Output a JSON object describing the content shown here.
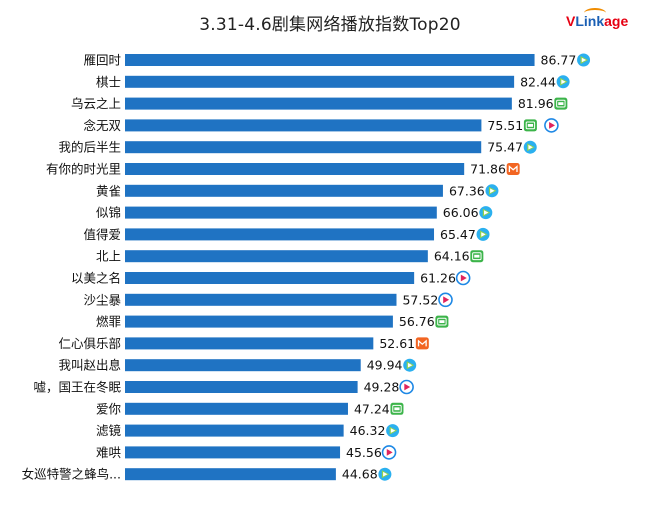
{
  "brand": {
    "logo_text_v": "V",
    "logo_text_link": "Link",
    "logo_text_age": "age"
  },
  "colors": {
    "bar": "#1f73c3",
    "tencent": "#2bb0ef",
    "iqiyi": "#3cb44a",
    "youku": "#1e88e5",
    "mango": "#f26522"
  },
  "chart_data": {
    "type": "bar",
    "orientation": "horizontal",
    "title": "3.31-4.6剧集网络播放指数Top20",
    "categories": [
      "雁回时",
      "棋士",
      "乌云之上",
      "念无双",
      "我的后半生",
      "有你的时光里",
      "黄雀",
      "似锦",
      "值得爱",
      "北上",
      "以美之名",
      "沙尘暴",
      "燃罪",
      "仁心俱乐部",
      "我叫赵出息",
      "嘘，国王在冬眠",
      "爱你",
      "滤镜",
      "难哄",
      "女巡特警之蜂鸟..."
    ],
    "values": [
      86.77,
      82.44,
      81.96,
      75.51,
      75.47,
      71.86,
      67.36,
      66.06,
      65.47,
      64.16,
      61.26,
      57.52,
      56.76,
      52.61,
      49.94,
      49.28,
      47.24,
      46.32,
      45.56,
      44.68
    ],
    "value_labels": [
      "86.77",
      "82.44",
      "81.96",
      "75.51",
      "75.47",
      "71.86",
      "67.36",
      "66.06",
      "65.47",
      "64.16",
      "61.26",
      "57.52",
      "56.76",
      "52.61",
      "49.94",
      "49.28",
      "47.24",
      "46.32",
      "45.56",
      "44.68"
    ],
    "platforms": [
      [
        "tencent-video-icon"
      ],
      [
        "tencent-video-icon"
      ],
      [
        "iqiyi-icon"
      ],
      [
        "iqiyi-icon",
        "youku-icon"
      ],
      [
        "tencent-video-icon"
      ],
      [
        "mango-tv-icon"
      ],
      [
        "tencent-video-icon"
      ],
      [
        "tencent-video-icon"
      ],
      [
        "tencent-video-icon"
      ],
      [
        "iqiyi-icon"
      ],
      [
        "youku-icon"
      ],
      [
        "youku-icon"
      ],
      [
        "iqiyi-icon"
      ],
      [
        "mango-tv-icon"
      ],
      [
        "tencent-video-icon"
      ],
      [
        "youku-icon"
      ],
      [
        "iqiyi-icon"
      ],
      [
        "tencent-video-icon"
      ],
      [
        "youku-icon"
      ],
      [
        "tencent-video-icon"
      ]
    ],
    "xlim": [
      0,
      100
    ],
    "grid": false,
    "legend": "none"
  }
}
